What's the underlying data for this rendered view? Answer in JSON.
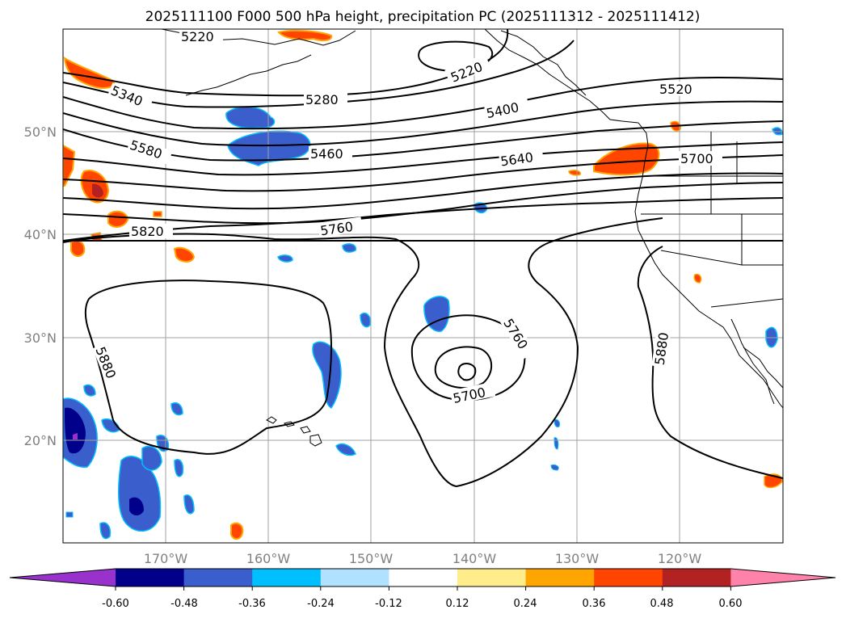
{
  "title": "2025111100 F000 500 hPa height, precipitation PC (2025111312 - 2025111412)",
  "lon_ticks": [
    "170°W",
    "160°W",
    "150°W",
    "140°W",
    "130°W",
    "120°W"
  ],
  "lat_ticks": [
    "20°N",
    "30°N",
    "40°N",
    "50°N"
  ],
  "contour_labels": [
    "5220",
    "5220",
    "5340",
    "5280",
    "5400",
    "5520",
    "5580",
    "5460",
    "5640",
    "5700",
    "5820",
    "5760",
    "5760",
    "5880",
    "5700",
    "5880"
  ],
  "colorbar": {
    "ticks": [
      "-0.60",
      "-0.48",
      "-0.36",
      "-0.24",
      "-0.12",
      "0.12",
      "0.24",
      "0.36",
      "0.48",
      "0.60"
    ],
    "colors": [
      "#9932cc",
      "#00008b",
      "#3a5fcd",
      "#00bfff",
      "#b0e2ff",
      "#ffffff",
      "#ffec8b",
      "#ffa500",
      "#ff4500",
      "#b22222",
      "#ff82ab"
    ]
  }
}
